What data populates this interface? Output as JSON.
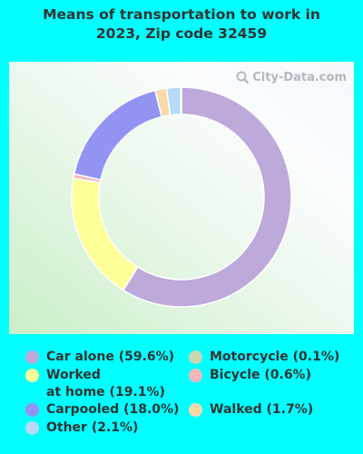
{
  "title": [
    "Means of transportation to work in",
    "2023, Zip code 32459"
  ],
  "watermark": "City-Data.com",
  "chart_data": {
    "type": "pie",
    "donut": true,
    "slices": [
      {
        "label": "Car alone (59.6%)",
        "value": 59.6,
        "color": "#bda9da"
      },
      {
        "label": "Worked\nat home (19.1%)",
        "value": 19.1,
        "color": "#ffff99"
      },
      {
        "label": "Bicycle (0.6%)",
        "value": 0.6,
        "color": "#f4b7be"
      },
      {
        "label": "Carpooled (18.0%)",
        "value": 18.0,
        "color": "#9393f2"
      },
      {
        "label": "Walked (1.7%)",
        "value": 1.7,
        "color": "#fbd8aa"
      },
      {
        "label": "Other (2.1%)",
        "value": 2.1,
        "color": "#b8daf9"
      },
      {
        "label": "Motorcycle (0.1%)",
        "value": 0.1,
        "color": "#c6d9b0"
      }
    ],
    "legend": {
      "left": [
        "Car alone (59.6%)",
        "Worked\nat home (19.1%)",
        "Carpooled (18.0%)",
        "Other (2.1%)"
      ],
      "right": [
        "Motorcycle (0.1%)",
        "Bicycle (0.6%)",
        "Walked (1.7%)"
      ]
    }
  }
}
